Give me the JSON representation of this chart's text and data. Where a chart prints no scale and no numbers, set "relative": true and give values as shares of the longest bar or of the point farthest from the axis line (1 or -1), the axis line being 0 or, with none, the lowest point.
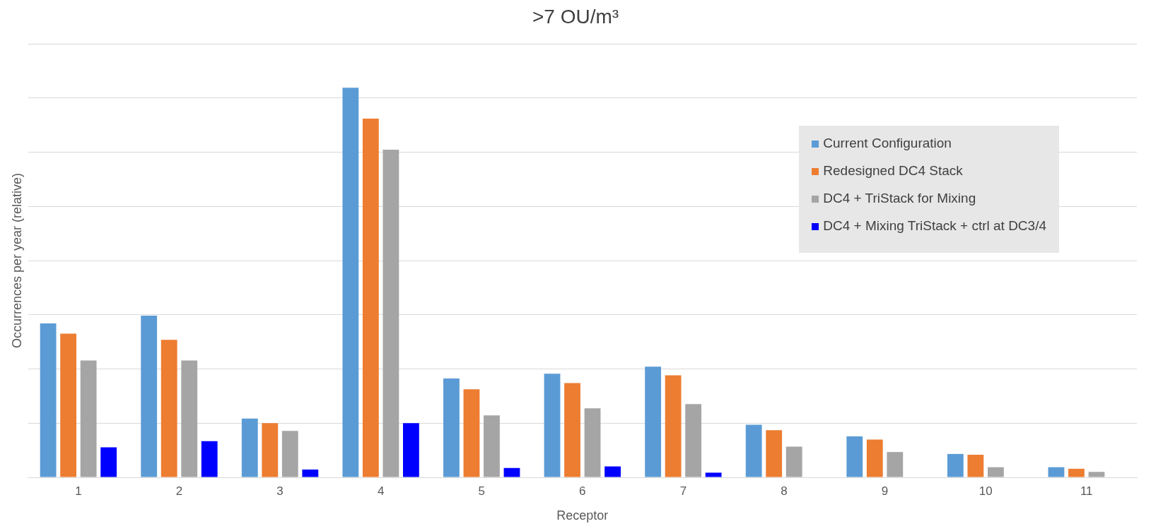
{
  "chart_data": {
    "type": "bar",
    "title": ">7 OU/m³",
    "xlabel": "Receptor",
    "ylabel": "Occurrences per year (relative)",
    "relative": true,
    "grid": "y",
    "legend": "top right",
    "categories": [
      "1",
      "2",
      "3",
      "4",
      "5",
      "6",
      "7",
      "8",
      "9",
      "10",
      "11"
    ],
    "series": [
      {
        "name": "Current Configuration",
        "color": "#5b9bd5",
        "values": [
          0.395,
          0.415,
          0.151,
          1,
          0.254,
          0.266,
          0.284,
          0.135,
          0.105,
          0.06,
          0.026
        ]
      },
      {
        "name": "Redesigned DC4 Stack",
        "color": "#ed7d31",
        "values": [
          0.369,
          0.353,
          0.139,
          0.921,
          0.226,
          0.242,
          0.262,
          0.121,
          0.097,
          0.058,
          0.022
        ]
      },
      {
        "name": "DC4 + TriStack for Mixing",
        "color": "#a5a5a5",
        "values": [
          0.3,
          0.3,
          0.119,
          0.841,
          0.159,
          0.177,
          0.188,
          0.079,
          0.065,
          0.026,
          0.014
        ]
      },
      {
        "name": "DC4 + Mixing TriStack + ctrl at DC3/4",
        "color": "#0000ff",
        "values": [
          0.077,
          0.093,
          0.02,
          0.139,
          0.024,
          0.028,
          0.012,
          null,
          null,
          null,
          null
        ]
      }
    ]
  }
}
